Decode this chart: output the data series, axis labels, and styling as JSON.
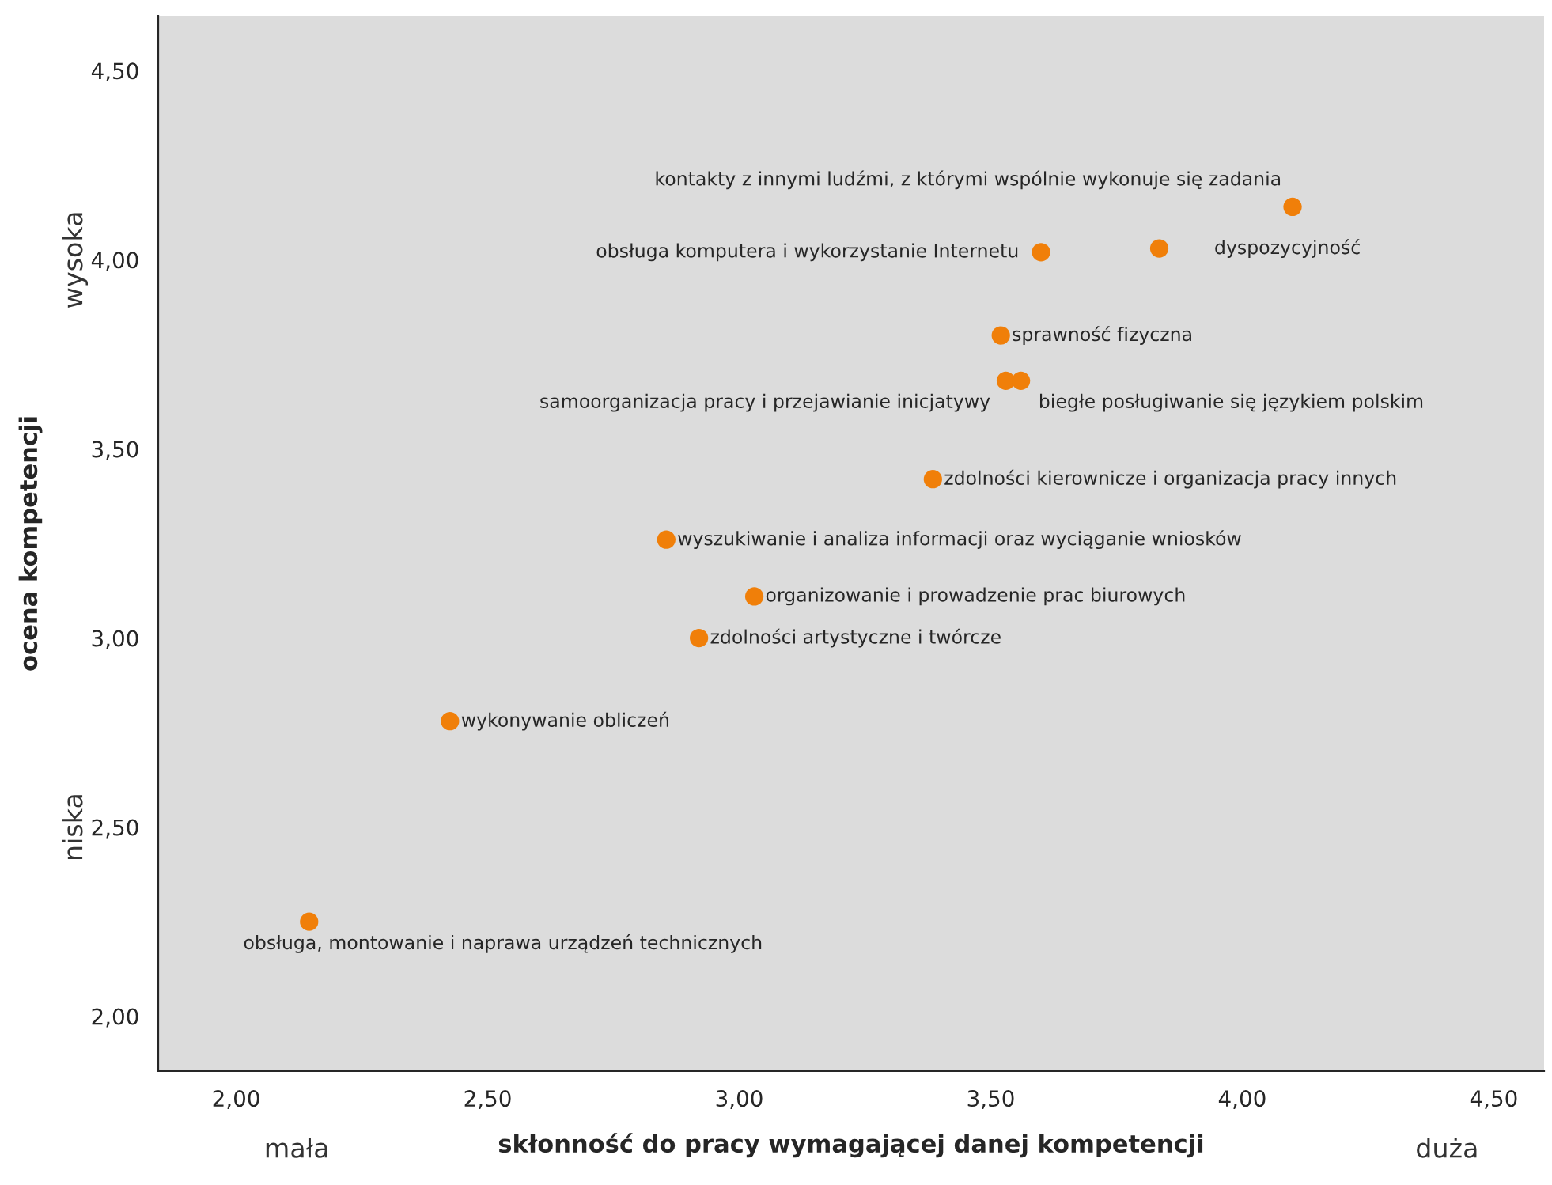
{
  "chart_data": {
    "type": "scatter",
    "xlabel": "skłonność do pracy wymagającej danej kompetencji",
    "ylabel": "ocena kompetencji",
    "x": [
      4.1,
      3.6,
      3.835,
      3.52,
      3.53,
      3.56,
      3.385,
      2.855,
      3.03,
      2.92,
      2.425,
      2.145
    ],
    "series": [
      {
        "color": "#f07f09",
        "values": [
          4.14,
          4.02,
          4.03,
          3.8,
          3.68,
          3.68,
          3.42,
          3.26,
          3.11,
          3.0,
          2.78,
          2.25
        ]
      }
    ],
    "xlim": [
      1.845,
      4.6
    ],
    "ylim": [
      1.855,
      4.645
    ],
    "xticks": [
      {
        "value": 2.0,
        "label": "2,00"
      },
      {
        "value": 2.5,
        "label": "2,50"
      },
      {
        "value": 3.0,
        "label": "3,00"
      },
      {
        "value": 3.5,
        "label": "3,50"
      },
      {
        "value": 4.0,
        "label": "4,00"
      },
      {
        "value": 4.5,
        "label": "4,50"
      }
    ],
    "yticks": [
      {
        "value": 2.0,
        "label": "2,00"
      },
      {
        "value": 2.5,
        "label": "2,50"
      },
      {
        "value": 3.0,
        "label": "3,00"
      },
      {
        "value": 3.5,
        "label": "3,50"
      },
      {
        "value": 4.0,
        "label": "4,00"
      },
      {
        "value": 4.5,
        "label": "4,50"
      }
    ],
    "grid": false,
    "legend": false,
    "marker": "circle",
    "annotations": [
      "wysoka",
      "niska",
      "mała",
      "duża",
      {
        "text": "kontakty z innymi ludźmi, z którymi wspólnie wykonuje się zadania",
        "x": 4.1,
        "y": 4.14
      },
      {
        "text": "obsługa komputera i wykorzystanie Internetu",
        "x": 3.6,
        "y": 4.02
      },
      {
        "text": "dyspozycyjność",
        "x": 3.835,
        "y": 4.03
      },
      {
        "text": "sprawność fizyczna",
        "x": 3.52,
        "y": 3.8
      },
      {
        "text": "samoorganizacja pracy i przejawianie inicjatywy",
        "x": 3.53,
        "y": 3.68
      },
      {
        "text": "biegłe posługiwanie się językiem polskim",
        "x": 3.56,
        "y": 3.68
      },
      {
        "text": "zdolności kierownicze i organizacja pracy innych",
        "x": 3.385,
        "y": 3.42
      },
      {
        "text": "wyszukiwanie i analiza informacji oraz wyciąganie wniosków",
        "x": 2.855,
        "y": 3.26
      },
      {
        "text": "organizowanie i prowadzenie prac biurowych",
        "x": 3.03,
        "y": 3.11
      },
      {
        "text": "zdolności artystyczne i twórcze",
        "x": 2.92,
        "y": 3.0
      },
      {
        "text": "wykonywanie obliczeń",
        "x": 2.425,
        "y": 2.78
      },
      {
        "text": "obsługa, montowanie i naprawa urządzeń technicznych",
        "x": 2.145,
        "y": 2.25
      }
    ]
  }
}
